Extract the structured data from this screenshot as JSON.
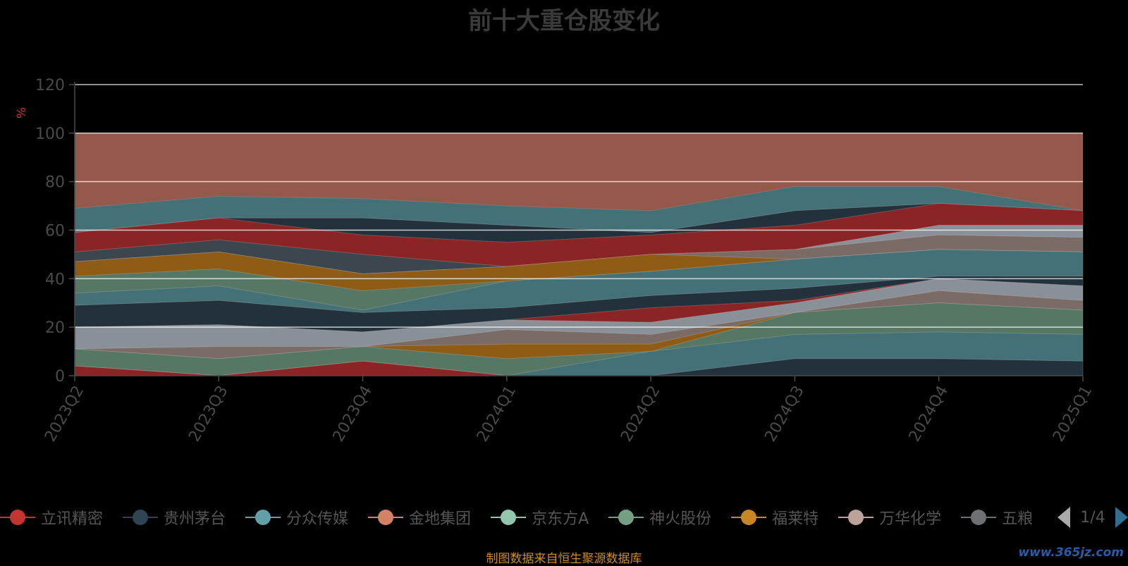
{
  "chart_data": {
    "type": "area",
    "title": "前十大重仓股变化",
    "ylabel": "%",
    "ylim": [
      0,
      120
    ],
    "yticks": [
      0,
      20,
      40,
      60,
      80,
      100,
      120
    ],
    "grid": true,
    "legend_position": "bottom",
    "categories": [
      "2023Q2",
      "2023Q3",
      "2023Q4",
      "2024Q1",
      "2024Q2",
      "2024Q3",
      "2024Q4",
      "2025Q1"
    ],
    "layers": [
      {
        "color": "#94594a",
        "opacity": 1.0,
        "top": [
          100,
          100,
          100,
          100,
          100,
          100,
          100,
          100
        ],
        "bottom": [
          0,
          0,
          0,
          0,
          0,
          0,
          0,
          0
        ]
      },
      {
        "color": "#447078",
        "opacity": 1.0,
        "top": [
          69,
          74,
          73,
          70,
          68,
          78,
          78,
          68
        ],
        "bottom": [
          59,
          65,
          65,
          62,
          59,
          68,
          71,
          68
        ]
      },
      {
        "color": "#22313b",
        "opacity": 1.0,
        "top": [
          59,
          65,
          65,
          62,
          59,
          68,
          71,
          68
        ],
        "bottom": [
          59,
          65,
          58,
          55,
          58,
          62,
          71,
          68
        ]
      },
      {
        "color": "#8b2424",
        "opacity": 1.0,
        "top": [
          59,
          65,
          58,
          55,
          58,
          62,
          71,
          68
        ],
        "bottom": [
          51,
          56,
          50,
          45,
          50,
          52,
          62,
          62
        ]
      },
      {
        "color": "#3c464e",
        "opacity": 1.0,
        "top": [
          51,
          56,
          50,
          45,
          50,
          52,
          62,
          62
        ],
        "bottom": [
          47,
          51,
          42,
          45,
          50,
          52,
          62,
          62
        ]
      },
      {
        "color": "#8a9098",
        "opacity": 1.0,
        "top": [
          47,
          51,
          42,
          45,
          50,
          52,
          62,
          62
        ],
        "bottom": [
          47,
          51,
          42,
          45,
          50,
          52,
          58,
          57
        ]
      },
      {
        "color": "#7a6b66",
        "opacity": 1.0,
        "top": [
          47,
          51,
          42,
          45,
          50,
          52,
          58,
          57
        ],
        "bottom": [
          47,
          51,
          42,
          45,
          50,
          48,
          52,
          51
        ]
      },
      {
        "color": "#8e5c14",
        "opacity": 1.0,
        "top": [
          47,
          51,
          42,
          45,
          50,
          48,
          52,
          51
        ],
        "bottom": [
          41,
          44,
          35,
          39,
          43,
          48,
          52,
          51
        ]
      },
      {
        "color": "#567763",
        "opacity": 1.0,
        "top": [
          41,
          44,
          35,
          39,
          43,
          48,
          52,
          51
        ],
        "bottom": [
          34,
          37,
          27,
          39,
          43,
          48,
          52,
          51
        ]
      },
      {
        "color": "#447078",
        "opacity": 1.0,
        "top": [
          34,
          37,
          27,
          39,
          43,
          48,
          52,
          51
        ],
        "bottom": [
          29,
          31,
          26,
          28,
          33,
          36,
          41,
          41
        ]
      },
      {
        "color": "#22313b",
        "opacity": 1.0,
        "top": [
          29,
          31,
          26,
          28,
          33,
          36,
          41,
          41
        ],
        "bottom": [
          20,
          21,
          18,
          23,
          28,
          31,
          40,
          37
        ]
      },
      {
        "color": "#8b2424",
        "opacity": 1.0,
        "top": [
          20,
          21,
          18,
          23,
          28,
          31,
          40,
          37
        ],
        "bottom": [
          20,
          21,
          18,
          23,
          22,
          30,
          40,
          37
        ]
      },
      {
        "color": "#8a9098",
        "opacity": 1.0,
        "top": [
          20,
          21,
          18,
          23,
          22,
          30,
          40,
          37
        ],
        "bottom": [
          11,
          12,
          12,
          19,
          17,
          26,
          35,
          31
        ]
      },
      {
        "color": "#7a6b66",
        "opacity": 1.0,
        "top": [
          11,
          12,
          12,
          19,
          17,
          26,
          35,
          31
        ],
        "bottom": [
          11,
          7,
          12,
          13,
          13,
          26,
          30,
          27
        ]
      },
      {
        "color": "#8e5c14",
        "opacity": 1.0,
        "top": [
          11,
          7,
          12,
          13,
          13,
          26,
          30,
          27
        ],
        "bottom": [
          11,
          7,
          12,
          7,
          10,
          26,
          30,
          27
        ]
      },
      {
        "color": "#567763",
        "opacity": 1.0,
        "top": [
          11,
          7,
          12,
          7,
          10,
          26,
          30,
          27
        ],
        "bottom": [
          4,
          0,
          6,
          0,
          10,
          17,
          18,
          17
        ]
      },
      {
        "color": "#447078",
        "opacity": 1.0,
        "top": [
          4,
          0,
          6,
          0,
          10,
          17,
          18,
          17
        ],
        "bottom": [
          4,
          0,
          6,
          0,
          0,
          7,
          7,
          6
        ]
      },
      {
        "color": "#22313b",
        "opacity": 1.0,
        "top": [
          4,
          0,
          6,
          0,
          0,
          7,
          7,
          6
        ],
        "bottom": [
          4,
          0,
          6,
          0,
          0,
          0,
          0,
          0
        ]
      },
      {
        "color": "#8b2424",
        "opacity": 1.0,
        "top": [
          4,
          0,
          6,
          0,
          0,
          0,
          0,
          0
        ],
        "bottom": [
          0,
          0,
          0,
          0,
          0,
          0,
          0,
          0
        ]
      }
    ],
    "legend": [
      {
        "name": "立讯精密",
        "color": "#c23531"
      },
      {
        "name": "贵州茅台",
        "color": "#2f4554"
      },
      {
        "name": "分众传媒",
        "color": "#61a0a8"
      },
      {
        "name": "金地集团",
        "color": "#d48265"
      },
      {
        "name": "京东方A",
        "color": "#91c7ae"
      },
      {
        "name": "神火股份",
        "color": "#749f83"
      },
      {
        "name": "福莱特",
        "color": "#ca8622"
      },
      {
        "name": "万华化学",
        "color": "#bda29a"
      },
      {
        "name": "五粮",
        "color": "#6e7074"
      }
    ]
  },
  "pager": {
    "text": "1/4"
  },
  "source_note": "制图数据来自恒生聚源数据库",
  "watermark": "www.365jz.com",
  "colors": {
    "axis_text": "#4a4a4a",
    "ylabel": "#c23531",
    "title": "#3a3a3a",
    "source": "#c98a2a"
  }
}
